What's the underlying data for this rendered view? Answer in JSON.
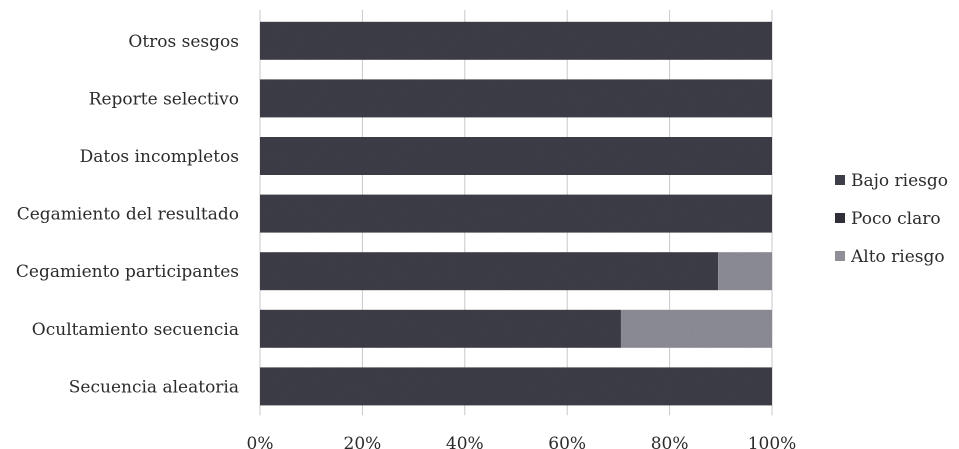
{
  "chart_data": {
    "type": "bar",
    "orientation": "horizontal",
    "stacked": true,
    "categories": [
      "Otros sesgos",
      "Reporte selectivo",
      "Datos incompletos",
      "Cegamiento del resultado",
      "Cegamiento participantes",
      "Ocultamiento secuencia",
      "Secuencia aleatoria"
    ],
    "series": [
      {
        "name": "Bajo riesgo",
        "color": "#3e3e48",
        "values": [
          100,
          100,
          100,
          100,
          89.5,
          70.5,
          100
        ]
      },
      {
        "name": "Poco claro",
        "color": "#2f2f3a",
        "values": [
          0,
          0,
          0,
          0,
          0,
          0,
          0
        ]
      },
      {
        "name": "Alto riesgo",
        "color": "#8f8f98",
        "values": [
          0,
          0,
          0,
          0,
          10.5,
          29.5,
          0
        ]
      }
    ],
    "x_ticks": [
      "0%",
      "20%",
      "40%",
      "60%",
      "80%",
      "100%"
    ],
    "xlim": [
      0,
      100
    ],
    "grid": true,
    "legend_position": "right",
    "title": "",
    "xlabel": "",
    "ylabel": ""
  }
}
